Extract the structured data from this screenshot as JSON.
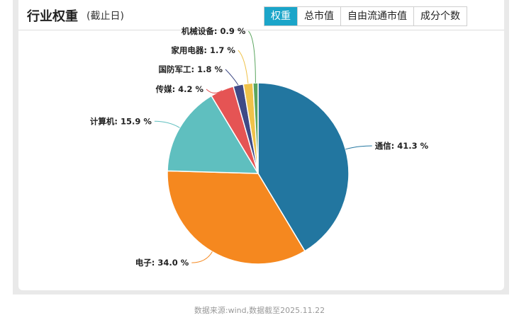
{
  "header": {
    "title": "行业权重",
    "subtitle": "(截止日)"
  },
  "tabs": [
    {
      "label": "权重",
      "active": true
    },
    {
      "label": "总市值",
      "active": false
    },
    {
      "label": "自由流通市值",
      "active": false
    },
    {
      "label": "成分个数",
      "active": false
    }
  ],
  "chart_data": {
    "type": "pie",
    "unit": "%",
    "slices": [
      {
        "name": "通信",
        "value": 41.3,
        "color": "#2276a0"
      },
      {
        "name": "电子",
        "value": 34.0,
        "color": "#f5881f"
      },
      {
        "name": "计算机",
        "value": 15.9,
        "color": "#5fbfbf"
      },
      {
        "name": "传媒",
        "value": 4.2,
        "color": "#e55454"
      },
      {
        "name": "国防军工",
        "value": 1.8,
        "color": "#3f4a86"
      },
      {
        "name": "家用电器",
        "value": 1.7,
        "color": "#efc24a"
      },
      {
        "name": "机械设备",
        "value": 0.9,
        "color": "#5aa55e"
      }
    ]
  },
  "footer": {
    "source": "数据来源:wind,数据截至2025.11.22"
  }
}
